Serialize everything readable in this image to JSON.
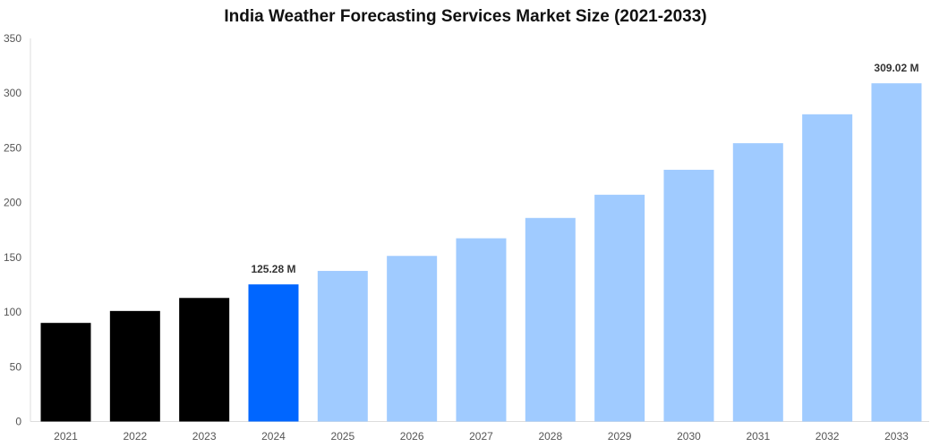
{
  "chart_data": {
    "type": "bar",
    "title": "India Weather Forecasting Services Market Size (2021-2033)",
    "xlabel": "",
    "ylabel": "",
    "ylim": [
      0,
      350
    ],
    "yticks": [
      0,
      50,
      100,
      150,
      200,
      250,
      300,
      350
    ],
    "grid": false,
    "categories": [
      "2021",
      "2022",
      "2023",
      "2024",
      "2025",
      "2026",
      "2027",
      "2028",
      "2029",
      "2030",
      "2031",
      "2032",
      "2033"
    ],
    "values": [
      90.1,
      101.0,
      112.9,
      125.28,
      137.6,
      151.3,
      167.4,
      186.0,
      207.2,
      230.0,
      254.3,
      280.7,
      309.02
    ],
    "colors": {
      "historical": "#000000",
      "base_year": "#0066ff",
      "forecast": "#a0cbff"
    },
    "data_labels": [
      {
        "category": "2024",
        "text": "125.28 M"
      },
      {
        "category": "2033",
        "text": "309.02 M"
      }
    ]
  }
}
